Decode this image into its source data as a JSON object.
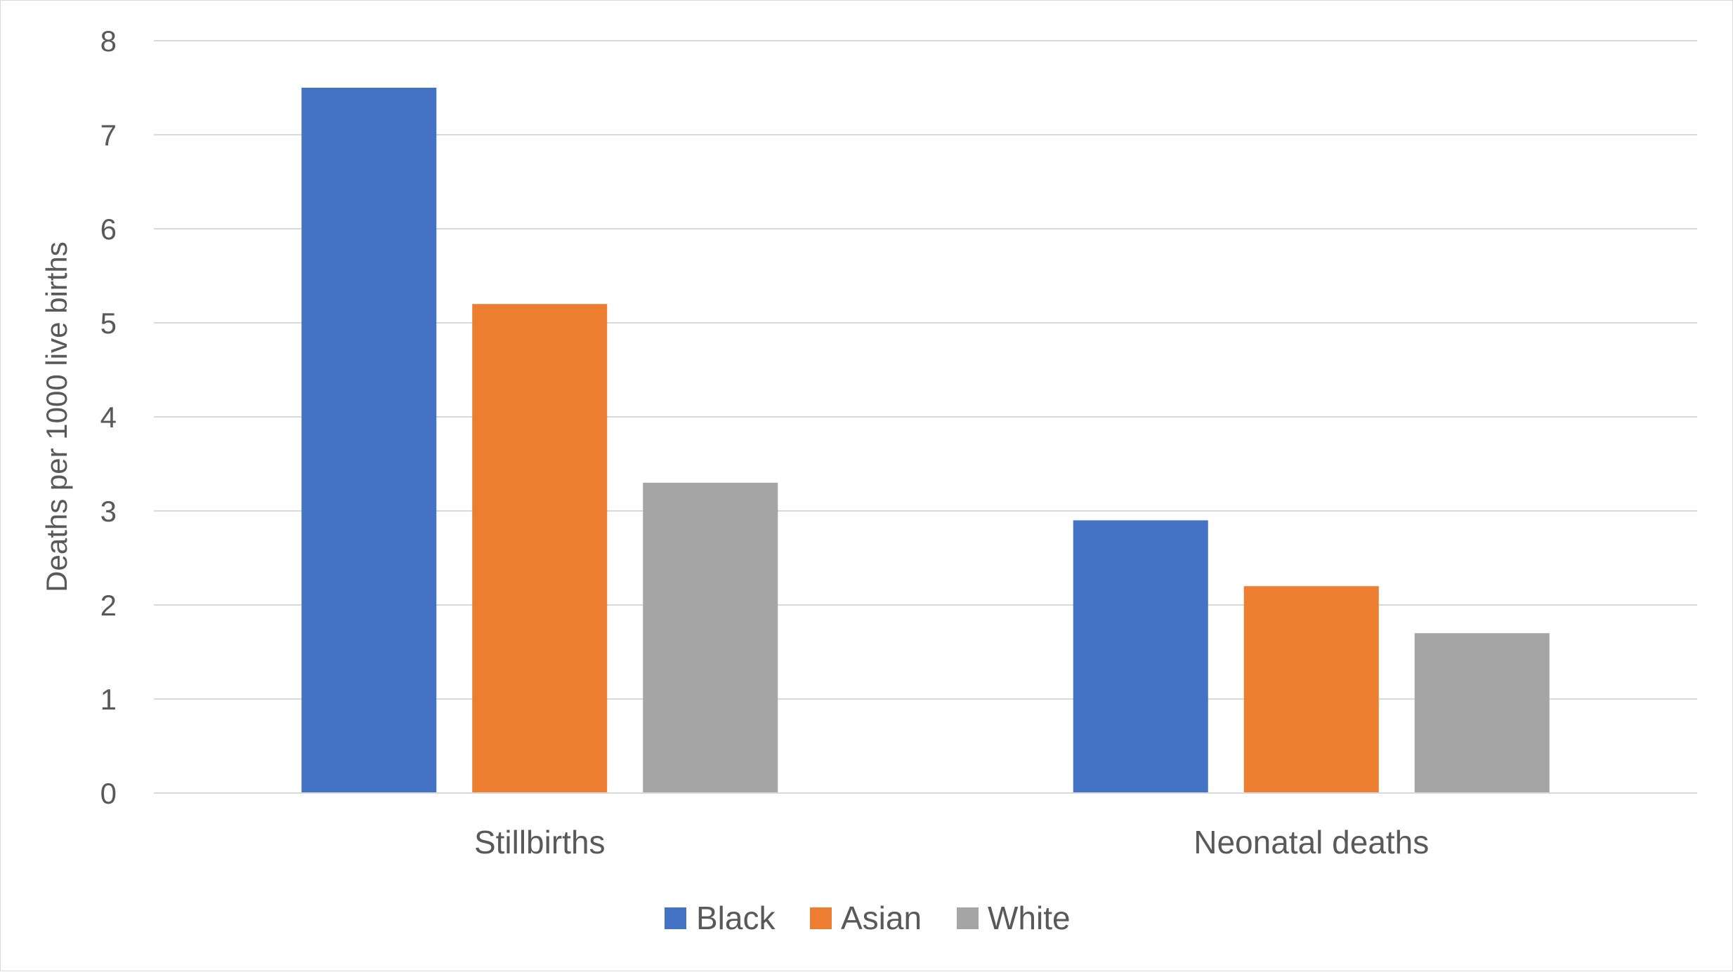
{
  "chart_data": {
    "type": "bar",
    "title": "",
    "xlabel": "",
    "ylabel": "Deaths per 1000 live births",
    "categories": [
      "Stillbirths",
      "Neonatal deaths"
    ],
    "series": [
      {
        "name": "Black",
        "values": [
          7.5,
          2.9
        ],
        "color": "#4472c4"
      },
      {
        "name": "Asian",
        "values": [
          5.2,
          2.2
        ],
        "color": "#ed7d31"
      },
      {
        "name": "White",
        "values": [
          3.3,
          1.7
        ],
        "color": "#a5a5a5"
      }
    ],
    "ylim": [
      0,
      8
    ],
    "yticks": [
      "0",
      "1",
      "2",
      "3",
      "4",
      "5",
      "6",
      "7",
      "8"
    ],
    "grid": true,
    "legend_position": "bottom",
    "gridline_color": "#d9d9d9",
    "text_color": "#595959"
  }
}
